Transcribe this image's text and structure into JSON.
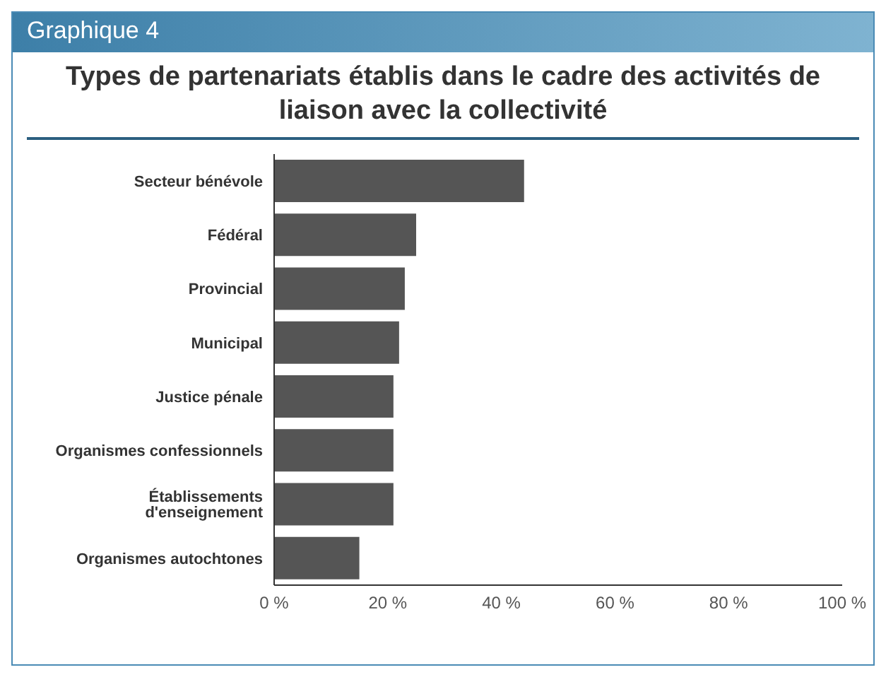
{
  "chart_data": {
    "type": "bar",
    "orientation": "horizontal",
    "title": "Types de partenariats établis dans le cadre des activités de liaison avec la collectivité",
    "annotations": [
      "Graphique 4"
    ],
    "categories": [
      "Secteur bénévole",
      "Fédéral",
      "Provincial",
      "Municipal",
      "Justice pénale",
      "Organismes confessionnels",
      "Établissements d'enseignement",
      "Organismes autochtones"
    ],
    "values": [
      44,
      25,
      23,
      22,
      21,
      21,
      21,
      15
    ],
    "color": "#555555",
    "xlim": [
      0,
      100
    ],
    "xticks": [
      {
        "value": 0,
        "label": "0 %"
      },
      {
        "value": 20,
        "label": "20 %"
      },
      {
        "value": 40,
        "label": "40 %"
      },
      {
        "value": 60,
        "label": "60 %"
      },
      {
        "value": 80,
        "label": "80 %"
      },
      {
        "value": 100,
        "label": "100 %"
      }
    ],
    "grid": false,
    "legend": false
  }
}
